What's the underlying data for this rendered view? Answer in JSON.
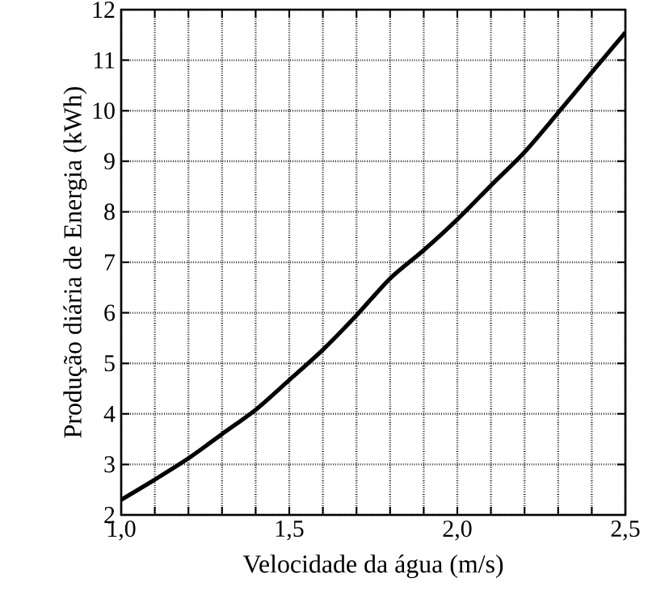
{
  "chart_data": {
    "type": "line",
    "xlabel": "Velocidade da água (m/s)",
    "ylabel": "Produção diária de Energia (kWh)",
    "x": [
      1.0,
      1.1,
      1.2,
      1.3,
      1.4,
      1.5,
      1.6,
      1.7,
      1.8,
      1.9,
      2.0,
      2.1,
      2.2,
      2.3,
      2.4,
      2.5
    ],
    "series": [
      {
        "color": "#000000",
        "values": [
          2.3,
          2.7,
          3.12,
          3.6,
          4.08,
          4.67,
          5.27,
          5.95,
          6.68,
          7.24,
          7.85,
          8.52,
          9.18,
          9.96,
          10.76,
          11.55
        ]
      }
    ],
    "xlim": [
      1.0,
      2.5
    ],
    "xticks": [
      {
        "value": 1.0,
        "label": "1,0"
      },
      {
        "value": 1.1,
        "label": null
      },
      {
        "value": 1.2,
        "label": null
      },
      {
        "value": 1.3,
        "label": null
      },
      {
        "value": 1.4,
        "label": null
      },
      {
        "value": 1.5,
        "label": "1,5"
      },
      {
        "value": 1.6,
        "label": null
      },
      {
        "value": 1.7,
        "label": null
      },
      {
        "value": 1.8,
        "label": null
      },
      {
        "value": 1.9,
        "label": null
      },
      {
        "value": 2.0,
        "label": "2,0"
      },
      {
        "value": 2.1,
        "label": null
      },
      {
        "value": 2.2,
        "label": null
      },
      {
        "value": 2.3,
        "label": null
      },
      {
        "value": 2.4,
        "label": null
      },
      {
        "value": 2.5,
        "label": "2,5"
      }
    ],
    "ylim": [
      2,
      12
    ],
    "yticks": [
      2,
      3,
      4,
      5,
      6,
      7,
      8,
      9,
      10,
      11,
      12
    ],
    "grid": true,
    "marker": "none",
    "line_style": "solid"
  }
}
